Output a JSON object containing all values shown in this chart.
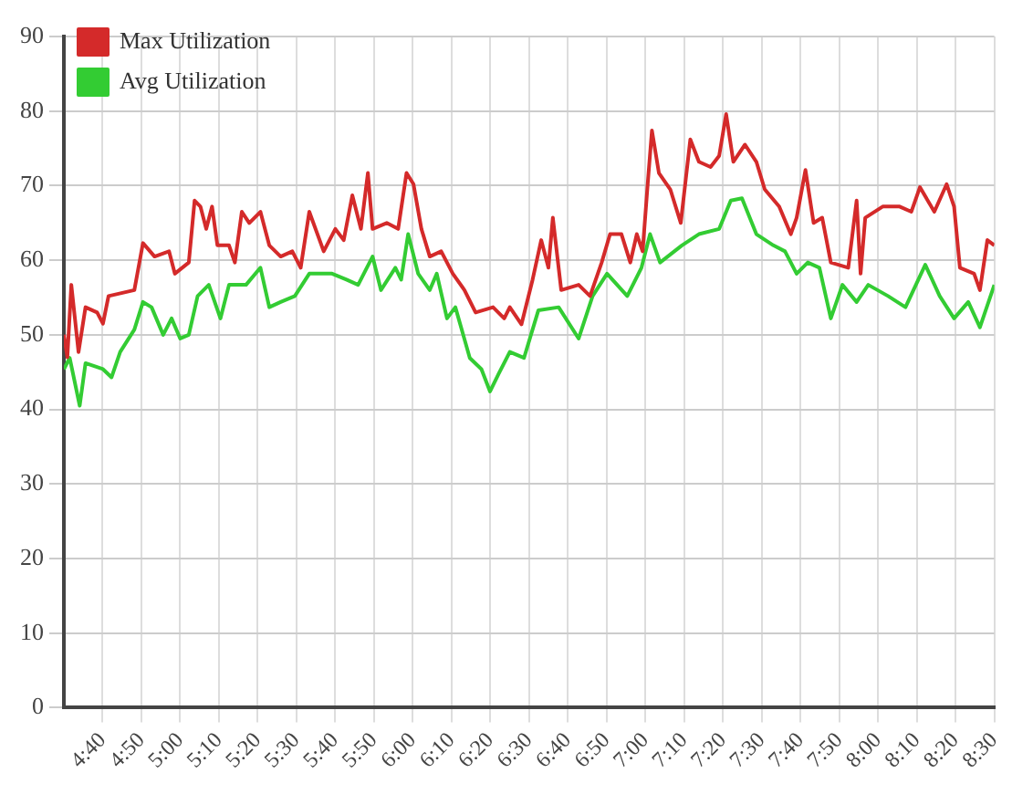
{
  "chart_data": {
    "type": "line",
    "xlim": [
      4.5,
      8.5
    ],
    "ylim": [
      0,
      90
    ],
    "xticks": [
      {
        "value": 4.6667,
        "label": "4:40"
      },
      {
        "value": 4.8333,
        "label": "4:50"
      },
      {
        "value": 5,
        "label": "5:00"
      },
      {
        "value": 5.1667,
        "label": "5:10"
      },
      {
        "value": 5.3333,
        "label": "5:20"
      },
      {
        "value": 5.5,
        "label": "5:30"
      },
      {
        "value": 5.6667,
        "label": "5:40"
      },
      {
        "value": 5.8333,
        "label": "5:50"
      },
      {
        "value": 6,
        "label": "6:00"
      },
      {
        "value": 6.1667,
        "label": "6:10"
      },
      {
        "value": 6.3333,
        "label": "6:20"
      },
      {
        "value": 6.5,
        "label": "6:30"
      },
      {
        "value": 6.6667,
        "label": "6:40"
      },
      {
        "value": 6.8333,
        "label": "6:50"
      },
      {
        "value": 7,
        "label": "7:00"
      },
      {
        "value": 7.1667,
        "label": "7:10"
      },
      {
        "value": 7.3333,
        "label": "7:20"
      },
      {
        "value": 7.5,
        "label": "7:30"
      },
      {
        "value": 7.6667,
        "label": "7:40"
      },
      {
        "value": 7.8333,
        "label": "7:50"
      },
      {
        "value": 8,
        "label": "8:00"
      },
      {
        "value": 8.1667,
        "label": "8:10"
      },
      {
        "value": 8.3333,
        "label": "8:20"
      },
      {
        "value": 8.5,
        "label": "8:30"
      }
    ],
    "yticks": [
      0,
      10,
      20,
      30,
      40,
      50,
      60,
      70,
      80,
      90
    ],
    "grid": true,
    "legend": "top left",
    "marker": "none",
    "line_style": "solid",
    "series": [
      {
        "name": "Max Utilization",
        "color": "#d42a2a",
        "x": [
          4.5,
          4.515,
          4.532,
          4.563,
          4.593,
          4.643,
          4.668,
          4.692,
          4.803,
          4.84,
          4.89,
          4.952,
          4.977,
          5.037,
          5.062,
          5.087,
          5.112,
          5.137,
          5.16,
          5.21,
          5.235,
          5.265,
          5.297,
          5.345,
          5.383,
          5.432,
          5.482,
          5.518,
          5.555,
          5.617,
          5.667,
          5.703,
          5.74,
          5.777,
          5.807,
          5.827,
          5.888,
          5.937,
          5.973,
          6.003,
          6.037,
          6.073,
          6.122,
          6.172,
          6.222,
          6.27,
          6.345,
          6.393,
          6.417,
          6.467,
          6.515,
          6.552,
          6.583,
          6.602,
          6.638,
          6.713,
          6.762,
          6.812,
          6.848,
          6.897,
          6.935,
          6.963,
          6.988,
          7.008,
          7.028,
          7.058,
          7.107,
          7.152,
          7.193,
          7.23,
          7.28,
          7.317,
          7.347,
          7.378,
          7.428,
          7.477,
          7.513,
          7.575,
          7.625,
          7.65,
          7.688,
          7.723,
          7.76,
          7.797,
          7.872,
          7.908,
          7.925,
          7.945,
          8.02,
          8.093,
          8.143,
          8.18,
          8.242,
          8.295,
          8.327,
          8.352,
          8.413,
          8.438,
          8.47,
          8.5
        ],
        "values": [
          50,
          47,
          56.7,
          47.7,
          53.7,
          53,
          51.5,
          55.2,
          56,
          62.3,
          60.5,
          61.2,
          58.2,
          59.7,
          68,
          67.2,
          64.2,
          67.2,
          62,
          62,
          59.7,
          66.5,
          65,
          66.5,
          62,
          60.5,
          61.2,
          59,
          66.5,
          61.2,
          64.2,
          62.7,
          68.7,
          64.2,
          71.7,
          64.2,
          65,
          64.2,
          71.7,
          70.2,
          64.2,
          60.5,
          61.2,
          58.2,
          56,
          53,
          53.7,
          52.2,
          53.7,
          51.4,
          57.4,
          62.7,
          59,
          65.7,
          56,
          56.7,
          55.2,
          59.7,
          63.5,
          63.5,
          59.7,
          63.5,
          61.2,
          69.5,
          77.4,
          71.7,
          69.5,
          65,
          76.2,
          73.2,
          72.5,
          74,
          79.6,
          73.2,
          75.5,
          73.2,
          69.5,
          67.2,
          63.5,
          65.7,
          72.1,
          65,
          65.7,
          59.7,
          59,
          68,
          58.2,
          65.7,
          67.2,
          67.2,
          66.5,
          69.8,
          66.5,
          70.2,
          67.2,
          59,
          58.2,
          56,
          62.7,
          62
        ]
      },
      {
        "name": "Avg Utilization",
        "color": "#33cc33",
        "x": [
          4.5,
          4.525,
          4.568,
          4.593,
          4.668,
          4.705,
          4.742,
          4.803,
          4.84,
          4.877,
          4.927,
          4.963,
          5.0,
          5.037,
          5.075,
          5.123,
          5.173,
          5.21,
          5.283,
          5.345,
          5.383,
          5.432,
          5.493,
          5.555,
          5.653,
          5.715,
          5.765,
          5.827,
          5.863,
          5.925,
          5.95,
          5.98,
          6.023,
          6.073,
          6.103,
          6.147,
          6.183,
          6.245,
          6.295,
          6.332,
          6.368,
          6.417,
          6.478,
          6.54,
          6.627,
          6.713,
          6.773,
          6.835,
          6.922,
          6.983,
          7.02,
          7.063,
          7.157,
          7.23,
          7.317,
          7.367,
          7.415,
          7.477,
          7.55,
          7.6,
          7.65,
          7.698,
          7.748,
          7.797,
          7.847,
          7.908,
          7.958,
          8.043,
          8.118,
          8.203,
          8.265,
          8.327,
          8.388,
          8.438,
          8.5
        ],
        "values": [
          45.4,
          46.9,
          40.5,
          46.2,
          45.4,
          44.3,
          47.7,
          50.7,
          54.4,
          53.7,
          50,
          52.2,
          49.5,
          50,
          55.2,
          56.7,
          52.2,
          56.7,
          56.7,
          59,
          53.7,
          54.4,
          55.2,
          58.2,
          58.2,
          57.4,
          56.7,
          60.5,
          56,
          59,
          57.4,
          63.5,
          58.2,
          56,
          58.2,
          52.2,
          53.7,
          46.9,
          45.4,
          42.4,
          44.7,
          47.7,
          46.9,
          53.3,
          53.7,
          49.5,
          55.2,
          58.2,
          55.2,
          59,
          63.5,
          59.7,
          62,
          63.5,
          64.2,
          68,
          68.3,
          63.5,
          62,
          61.2,
          58.2,
          59.7,
          59,
          52.2,
          56.7,
          54.4,
          56.7,
          55.2,
          53.7,
          59.4,
          55.2,
          52.2,
          54.4,
          51,
          56.7
        ]
      }
    ]
  }
}
